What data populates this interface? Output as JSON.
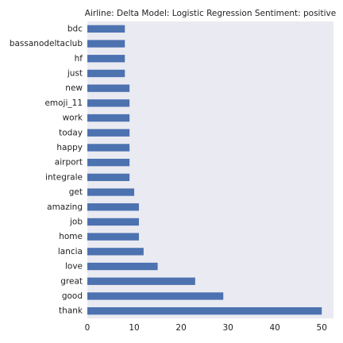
{
  "chart_data": {
    "type": "bar",
    "orientation": "horizontal",
    "title": "Airline: Delta Model: Logistic Regression Sentiment: positive",
    "xlabel": "",
    "ylabel": "",
    "categories": [
      "bdc",
      "bassanodeltaclub",
      "hf",
      "just",
      "new",
      "emoji_11",
      "work",
      "today",
      "happy",
      "airport",
      "integrale",
      "get",
      "amazing",
      "job",
      "home",
      "lancia",
      "love",
      "great",
      "good",
      "thank"
    ],
    "values": [
      8,
      8,
      8,
      8,
      9,
      9,
      9,
      9,
      9,
      9,
      9,
      10,
      11,
      11,
      11,
      12,
      15,
      23,
      29,
      50
    ],
    "xlim": [
      0,
      52.5
    ],
    "xticks": [
      0,
      10,
      20,
      30,
      40,
      50
    ],
    "grid": false,
    "legend": "none",
    "colors": {
      "bar": "#4c72b0",
      "plot_background": "#eaeaf2",
      "text": "#222222"
    }
  }
}
